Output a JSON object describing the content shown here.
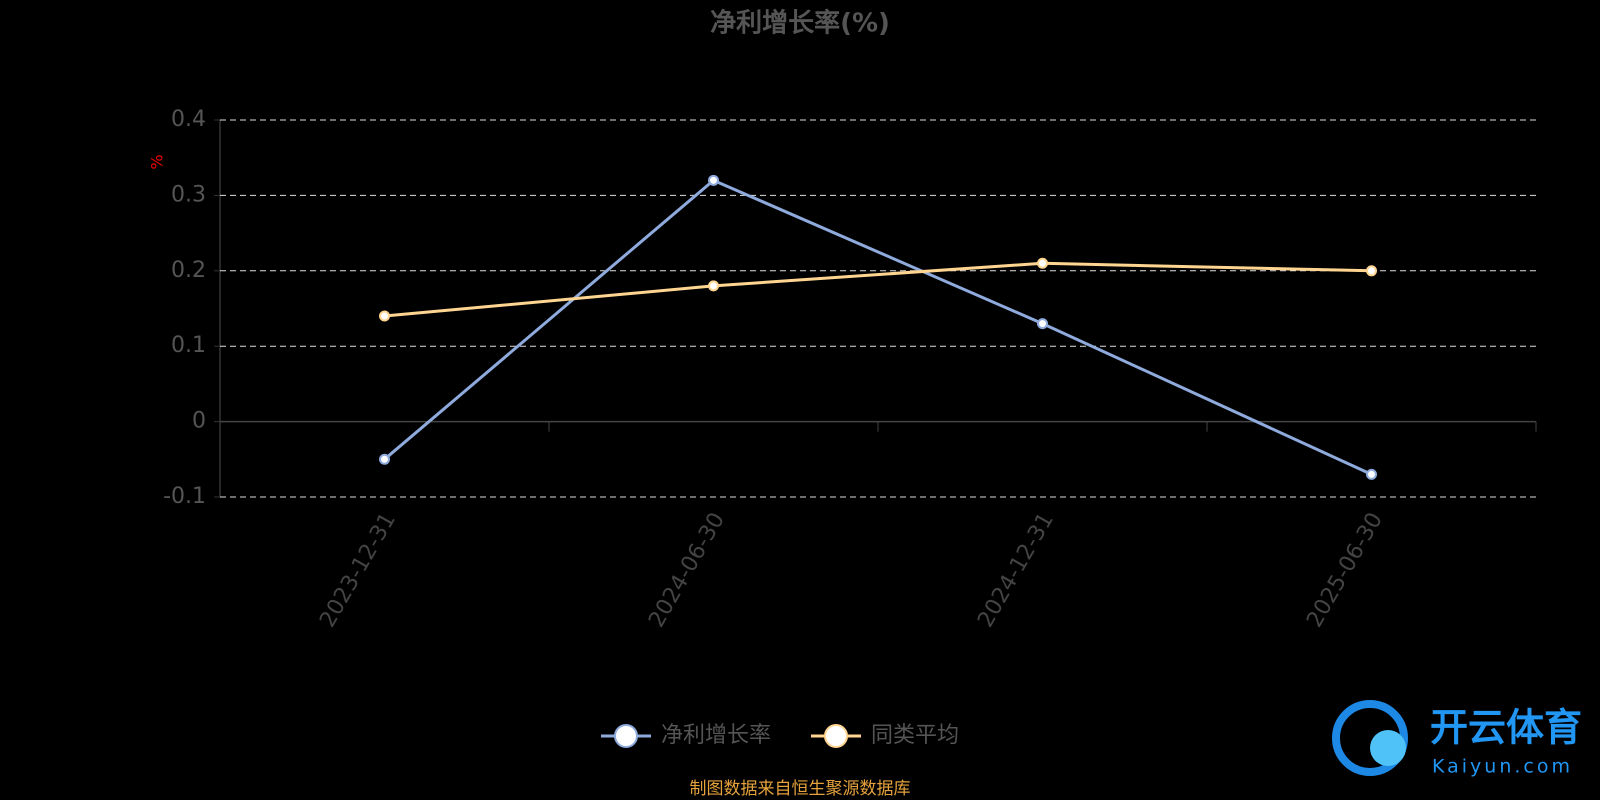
{
  "chart_data": {
    "type": "line",
    "title": "净利增长率(%)",
    "y_label": "%",
    "categories": [
      "2023-12-31",
      "2024-06-30",
      "2024-12-31",
      "2025-06-30"
    ],
    "series": [
      {
        "name": "净利增长率",
        "color": "#8faadc",
        "values": [
          -0.05,
          0.32,
          0.13,
          -0.07
        ]
      },
      {
        "name": "同类平均",
        "color": "#ffd591",
        "values": [
          0.14,
          0.18,
          0.21,
          0.2
        ]
      }
    ],
    "ylim": [
      -0.1,
      0.4
    ],
    "yticks": [
      -0.1,
      0,
      0.1,
      0.2,
      0.3,
      0.4
    ],
    "grid": true,
    "legend": "bottom",
    "source": "制图数据来自恒生聚源数据库"
  },
  "watermark": {
    "title": "开云体育",
    "subtitle": "Kaiyun.com"
  }
}
